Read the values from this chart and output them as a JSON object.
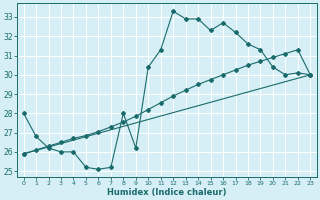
{
  "xlabel": "Humidex (Indice chaleur)",
  "bg_color": "#d6eef5",
  "line_color": "#1a6b6b",
  "grid_color": "#ffffff",
  "xlim": [
    -0.5,
    23.5
  ],
  "ylim": [
    24.7,
    33.7
  ],
  "yticks": [
    25,
    26,
    27,
    28,
    29,
    30,
    31,
    32,
    33
  ],
  "xticks": [
    0,
    1,
    2,
    3,
    4,
    5,
    6,
    7,
    8,
    9,
    10,
    11,
    12,
    13,
    14,
    15,
    16,
    17,
    18,
    19,
    20,
    21,
    22,
    23
  ],
  "line1_x": [
    0,
    1,
    2,
    3,
    4,
    5,
    6,
    7,
    8,
    9,
    10,
    11,
    12,
    13,
    14,
    15,
    16,
    17,
    18,
    19,
    20,
    21,
    22,
    23
  ],
  "line1_y": [
    28.0,
    26.8,
    26.2,
    26.0,
    26.0,
    25.2,
    25.1,
    25.2,
    28.0,
    26.2,
    30.4,
    31.3,
    33.3,
    32.9,
    32.9,
    32.3,
    32.7,
    32.2,
    31.6,
    31.3,
    30.4,
    30.0,
    30.1,
    30.0
  ],
  "line2_x": [
    0,
    1,
    2,
    3,
    4,
    5,
    6,
    7,
    8,
    9,
    10,
    11,
    12,
    13,
    14,
    15,
    16,
    17,
    18,
    19,
    20,
    21,
    22,
    23
  ],
  "line2_y": [
    25.9,
    26.1,
    26.3,
    26.5,
    26.7,
    26.85,
    27.05,
    27.3,
    27.55,
    27.85,
    28.2,
    28.55,
    28.9,
    29.2,
    29.5,
    29.75,
    30.0,
    30.25,
    30.5,
    30.7,
    30.9,
    31.1,
    31.3,
    30.0
  ],
  "line3_x": [
    0,
    23
  ],
  "line3_y": [
    25.9,
    30.0
  ]
}
